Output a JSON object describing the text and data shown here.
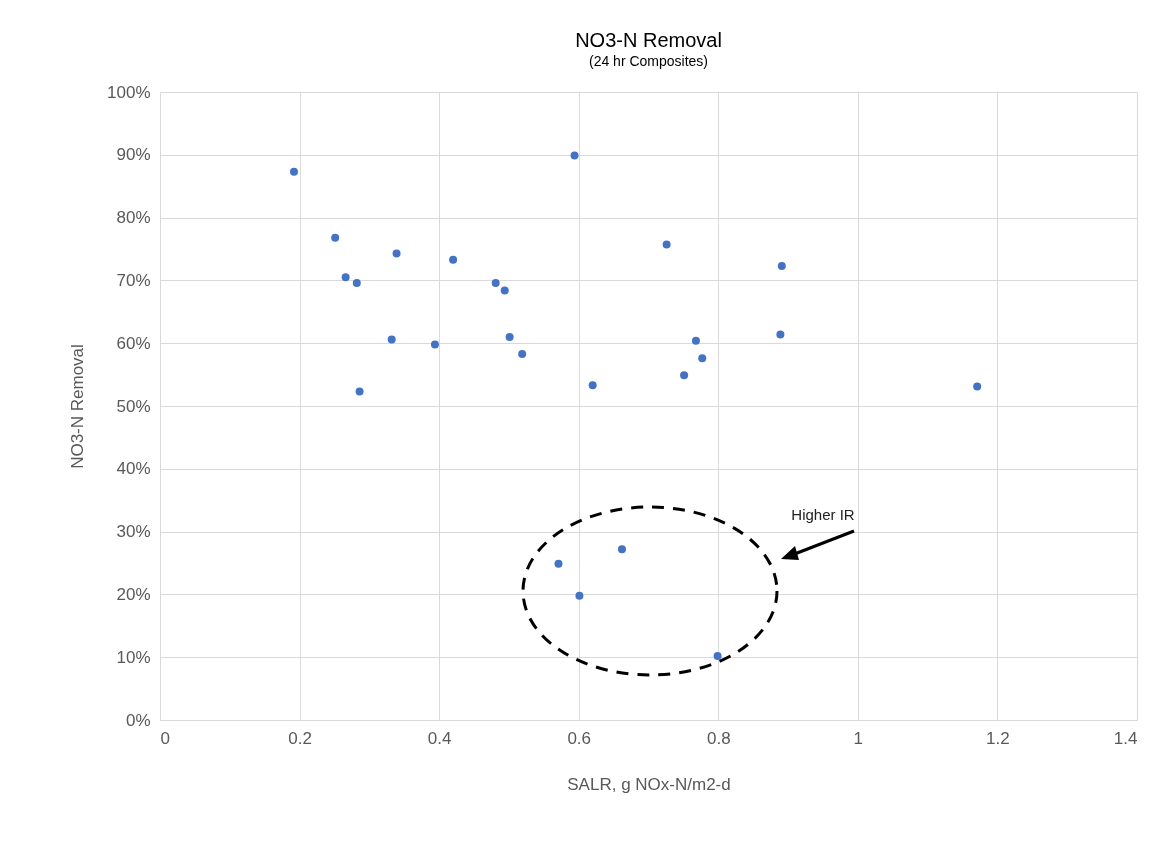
{
  "chart_data": {
    "type": "scatter",
    "title": "NO3-N Removal",
    "subtitle": "(24 hr Composites)",
    "xlabel": "SALR, g NOx-N/m2-d",
    "ylabel": "NO3-N Removal",
    "x": [
      0.192,
      0.251,
      0.339,
      0.42,
      0.266,
      0.282,
      0.332,
      0.394,
      0.286,
      0.594,
      0.726,
      0.891,
      0.481,
      0.494,
      0.501,
      0.519,
      0.62,
      0.768,
      0.777,
      0.751,
      0.889,
      1.171,
      0.571,
      0.662,
      0.601,
      0.799
    ],
    "series": [
      {
        "color": "#4472c4",
        "values": [
          87.3,
          76.8,
          74.3,
          73.3,
          70.5,
          69.6,
          60.6,
          59.8,
          52.3,
          89.9,
          75.7,
          72.3,
          69.6,
          68.4,
          61.0,
          58.3,
          53.3,
          60.4,
          57.6,
          54.9,
          61.4,
          53.1,
          24.9,
          27.2,
          19.8,
          10.2
        ]
      }
    ],
    "xlim": [
      0,
      1.4
    ],
    "xticks": [
      0,
      0.2,
      0.4,
      0.6,
      0.8,
      1,
      1.2,
      1.4
    ],
    "ylim": [
      0,
      100
    ],
    "yticks": [
      {
        "value": 0,
        "label": "0%"
      },
      {
        "value": 10,
        "label": "10%"
      },
      {
        "value": 20,
        "label": "20%"
      },
      {
        "value": 30,
        "label": "30%"
      },
      {
        "value": 40,
        "label": "40%"
      },
      {
        "value": 50,
        "label": "50%"
      },
      {
        "value": 60,
        "label": "60%"
      },
      {
        "value": 70,
        "label": "70%"
      },
      {
        "value": 80,
        "label": "80%"
      },
      {
        "value": 90,
        "label": "90%"
      },
      {
        "value": 100,
        "label": "100%"
      }
    ],
    "annotations": [
      "Higher IR"
    ],
    "grid": true,
    "marker": "circle"
  }
}
